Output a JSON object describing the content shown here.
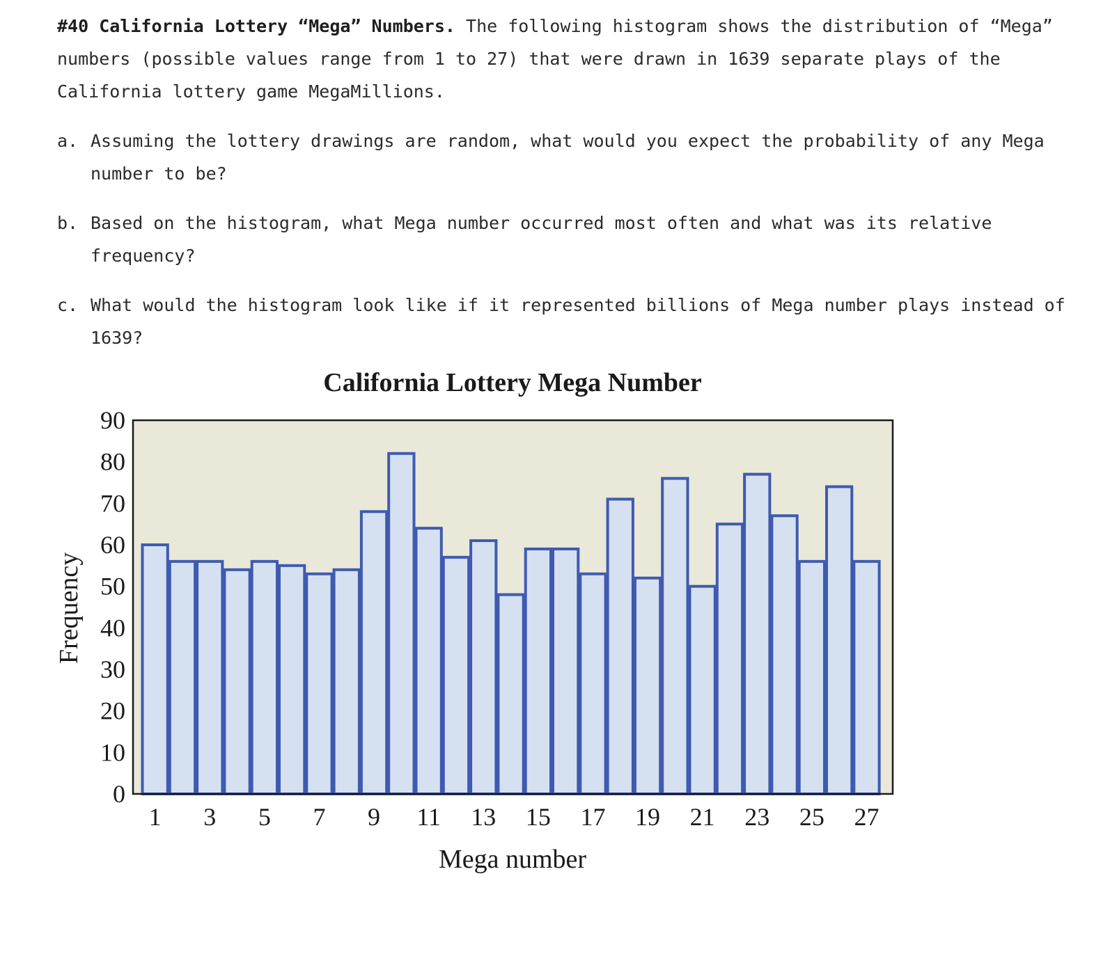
{
  "problem": {
    "heading": "#40 California Lottery “Mega” Numbers.",
    "intro": "The following histogram shows the distribution of “Mega” numbers (possible values range from 1 to 27) that were drawn in 1639 separate plays of the California lottery game MegaMillions.",
    "questions": [
      {
        "letter": "a.",
        "text": "Assuming the lottery drawings are random, what would you expect the probability of any Mega number to be?"
      },
      {
        "letter": "b.",
        "text": "Based on the histogram, what Mega number occurred most often and what was its relative frequency?"
      },
      {
        "letter": "c.",
        "text": "What would the histogram look like if it represented billions of Mega number plays instead of 1639?"
      }
    ]
  },
  "chart_data": {
    "type": "bar",
    "title": "California Lottery Mega Number",
    "xlabel": "Mega number",
    "ylabel": "Frequency",
    "ylim": [
      0,
      90
    ],
    "yticks": [
      0,
      10,
      20,
      30,
      40,
      50,
      60,
      70,
      80,
      90
    ],
    "xticks": [
      1,
      3,
      5,
      7,
      9,
      11,
      13,
      15,
      17,
      19,
      21,
      23,
      25,
      27
    ],
    "categories": [
      1,
      2,
      3,
      4,
      5,
      6,
      7,
      8,
      9,
      10,
      11,
      12,
      13,
      14,
      15,
      16,
      17,
      18,
      19,
      20,
      21,
      22,
      23,
      24,
      25,
      26,
      27
    ],
    "values": [
      60,
      56,
      56,
      54,
      56,
      55,
      53,
      54,
      68,
      82,
      64,
      57,
      61,
      48,
      59,
      59,
      53,
      71,
      52,
      76,
      50,
      65,
      77,
      67,
      56,
      74,
      56
    ],
    "colors": {
      "plot_bg": "#e9e8d9",
      "bar_fill": "#d5e1f0",
      "bar_edge": "#3f5ab0",
      "frame": "#1a1a1a",
      "text": "#1a1a1a"
    }
  }
}
